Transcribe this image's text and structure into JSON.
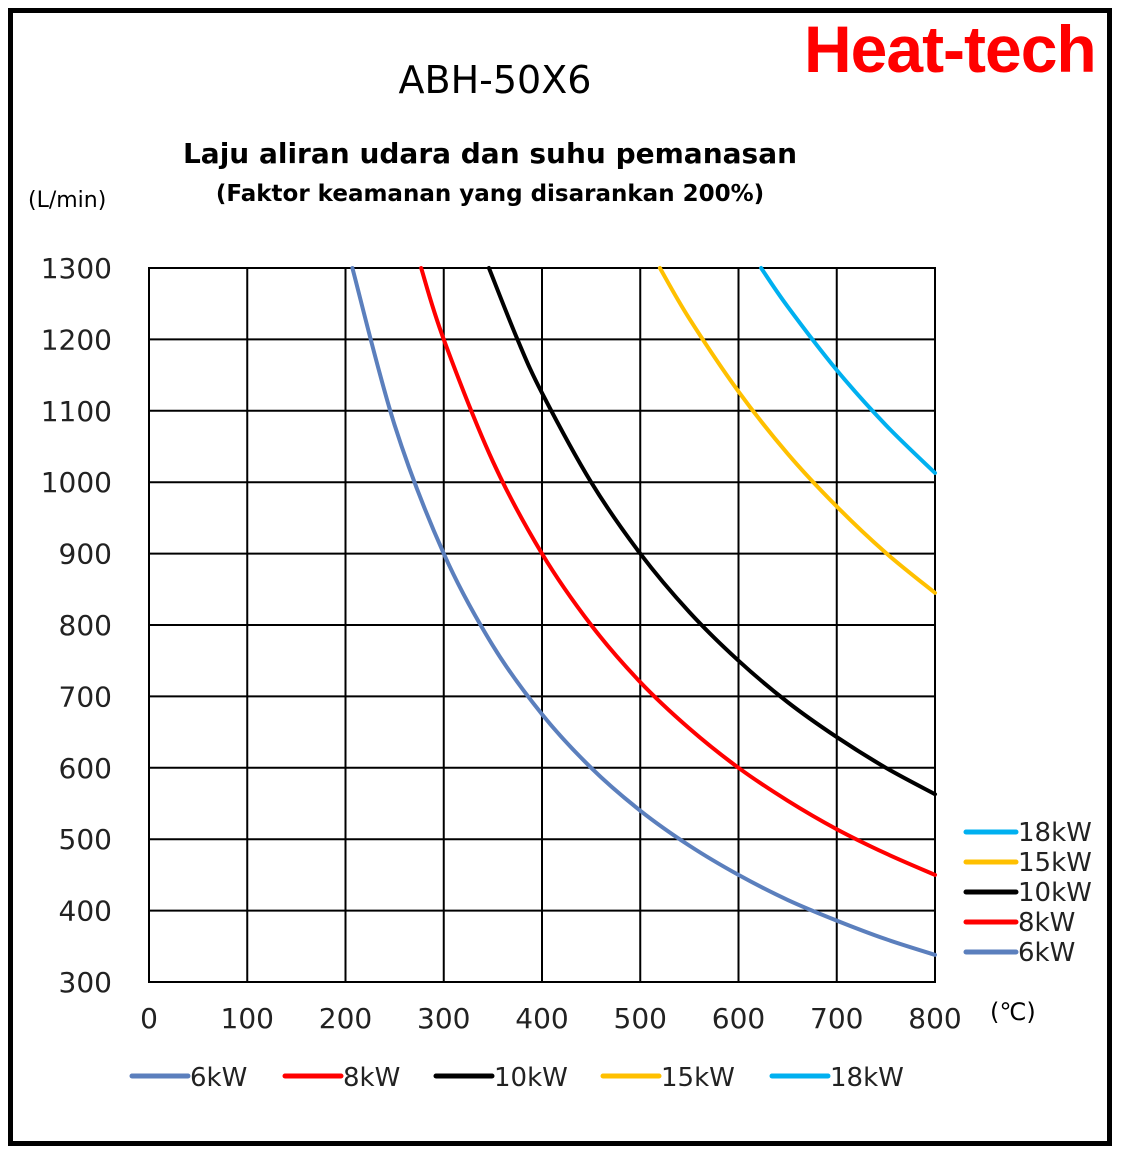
{
  "brand": "Heat-tech",
  "title": "ABH-50X6",
  "subtitle": "Laju aliran udara dan suhu pemanasan",
  "subtitle2": "(Faktor keamanan yang disarankan 200%)",
  "y_unit": "(L/min)",
  "x_unit": "(℃)",
  "colors": {
    "frame": "#000000",
    "brand": "#ff0000",
    "grid": "#000000"
  },
  "chart_data": {
    "type": "line",
    "title": "ABH-50X6",
    "xlabel": "(℃)",
    "ylabel": "(L/min)",
    "xlim": [
      0,
      800
    ],
    "ylim": [
      300,
      1300
    ],
    "xticks": [
      "0",
      "100",
      "200",
      "300",
      "400",
      "500",
      "600",
      "700",
      "800"
    ],
    "yticks": [
      "300",
      "400",
      "500",
      "600",
      "700",
      "800",
      "900",
      "1000",
      "1100",
      "1200",
      "1300"
    ],
    "grid": true,
    "legend_right": [
      "18kW",
      "15kW",
      "10kW",
      "8kW",
      "6kW"
    ],
    "legend_bottom": [
      "6kW",
      "8kW",
      "10kW",
      "15kW",
      "18kW"
    ],
    "series": [
      {
        "name": "6kW",
        "color": "#5b7fbd",
        "x": [
          207,
          250,
          300,
          350,
          400,
          450,
          500,
          550,
          600,
          650,
          700,
          750,
          800
        ],
        "y": [
          1300,
          1080,
          900,
          771,
          675,
          600,
          540,
          491,
          450,
          415,
          386,
          360,
          338
        ]
      },
      {
        "name": "8kW",
        "color": "#ff0000",
        "x": [
          277,
          300,
          350,
          400,
          450,
          500,
          550,
          600,
          650,
          700,
          750,
          800
        ],
        "y": [
          1300,
          1200,
          1029,
          900,
          800,
          720,
          655,
          600,
          554,
          514,
          480,
          450
        ]
      },
      {
        "name": "10kW",
        "color": "#000000",
        "x": [
          346,
          375,
          400,
          450,
          500,
          550,
          600,
          650,
          700,
          750,
          800
        ],
        "y": [
          1300,
          1200,
          1125,
          1000,
          900,
          818,
          750,
          692,
          643,
          600,
          563
        ]
      },
      {
        "name": "15kW",
        "color": "#ffc000",
        "x": [
          520,
          550,
          600,
          650,
          700,
          750,
          800
        ],
        "y": [
          1300,
          1229,
          1127,
          1040,
          966,
          901,
          845
        ]
      },
      {
        "name": "18kW",
        "color": "#00b0f0",
        "x": [
          623,
          650,
          700,
          750,
          800
        ],
        "y": [
          1300,
          1246,
          1157,
          1080,
          1013
        ]
      }
    ]
  }
}
